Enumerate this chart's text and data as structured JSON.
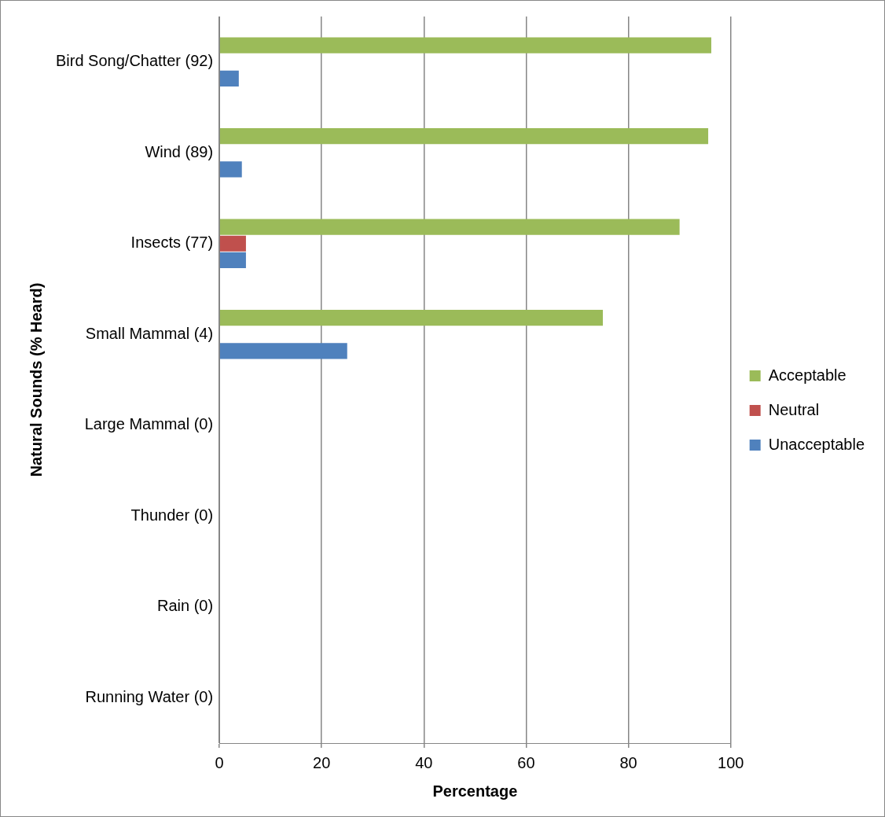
{
  "chart_data": {
    "type": "bar",
    "orientation": "horizontal",
    "xlabel": "Percentage",
    "ylabel": "Natural Sounds (% Heard)",
    "categories": [
      "Bird Song/Chatter (92)",
      "Wind (89)",
      "Insects (77)",
      "Small Mammal (4)",
      "Large Mammal (0)",
      "Thunder (0)",
      "Rain (0)",
      "Running Water (0)"
    ],
    "series": [
      {
        "name": "Acceptable",
        "color": "#9bbb59",
        "values": [
          96.2,
          95.6,
          90,
          75,
          0,
          0,
          0,
          0
        ]
      },
      {
        "name": "Neutral",
        "color": "#c0504d",
        "values": [
          0,
          0,
          5.2,
          0,
          0,
          0,
          0,
          0
        ]
      },
      {
        "name": "Unacceptable",
        "color": "#4f81bd",
        "values": [
          3.8,
          4.4,
          5.2,
          25,
          0,
          0,
          0,
          0
        ]
      }
    ],
    "xlim": [
      0,
      100
    ],
    "xticks": [
      0,
      20,
      40,
      60,
      80,
      100
    ],
    "grid": "x",
    "legend": "right"
  }
}
